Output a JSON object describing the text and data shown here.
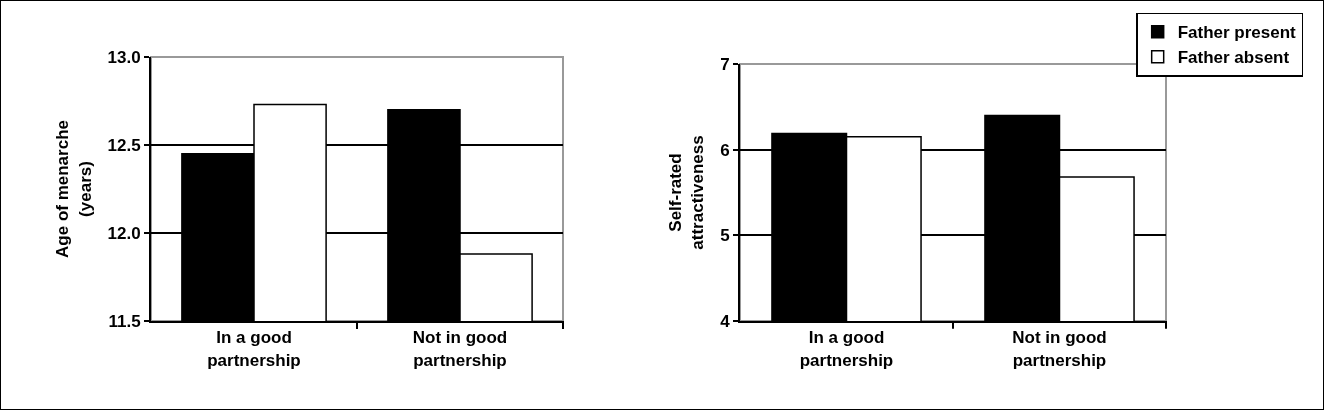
{
  "chart_data": [
    {
      "type": "bar",
      "categories": [
        "In a good\npartnership",
        "Not in good\npartnership"
      ],
      "ylabel": "Age of menarche\n(years)",
      "series": [
        {
          "color": "#000000",
          "values": [
            12.45,
            12.7
          ]
        },
        {
          "color": "#ffffff",
          "values": [
            12.73,
            11.88
          ]
        }
      ],
      "ylim": [
        11.5,
        13.0
      ],
      "yticks": [
        {
          "value": 11.5,
          "label": "11.5"
        },
        {
          "value": 12.0,
          "label": "12.0"
        },
        {
          "value": 12.5,
          "label": "12.5"
        },
        {
          "value": 13.0,
          "label": "13.0"
        }
      ],
      "grid": "y",
      "legend": false
    },
    {
      "type": "bar",
      "categories": [
        "In a good\npartnership",
        "Not in good\npartnership"
      ],
      "ylabel": "Self-rated\nattractiveness",
      "series": [
        {
          "name": "Father present",
          "color": "#000000",
          "values": [
            6.19,
            6.4
          ]
        },
        {
          "name": "Father absent",
          "color": "#ffffff",
          "values": [
            6.15,
            5.68
          ]
        }
      ],
      "ylim": [
        4,
        7
      ],
      "yticks": [
        4,
        5,
        6,
        7
      ],
      "grid": "y",
      "legend": "top right"
    }
  ]
}
